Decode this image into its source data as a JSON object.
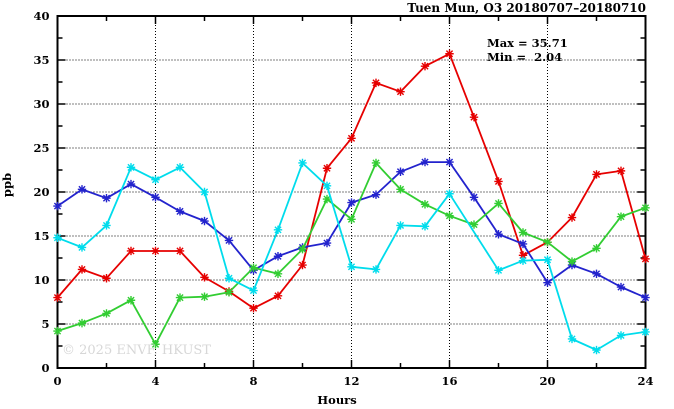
{
  "title": "Tuen Mun, O3 20180707–20180710",
  "legend": {
    "max_label": "Max = 35.71",
    "min_label": "Min =  2.04"
  },
  "watermark": "© 2025 ENVF, HKUST",
  "axes": {
    "y_label": "ppb",
    "x_label": "Hours"
  },
  "chart_data": {
    "type": "line",
    "title": "Tuen Mun, O3 20180707–20180710",
    "xlabel": "Hours",
    "ylabel": "ppb",
    "xlim": [
      0,
      24
    ],
    "ylim": [
      0,
      40
    ],
    "x_ticks": [
      0,
      4,
      8,
      12,
      16,
      20,
      24
    ],
    "x_minor_step": 2,
    "y_ticks": [
      0,
      5,
      10,
      15,
      20,
      25,
      30,
      35,
      40
    ],
    "y_minor_step": 2.5,
    "grid": "dotted",
    "legend_position": "top-right-inside",
    "max_value": 35.71,
    "min_value": 2.04,
    "marker": "asterisk",
    "x": [
      0,
      1,
      2,
      3,
      4,
      5,
      6,
      7,
      8,
      9,
      10,
      11,
      12,
      13,
      14,
      15,
      16,
      17,
      18,
      19,
      20,
      21,
      22,
      23,
      24
    ],
    "series": [
      {
        "name": "red-day-series",
        "color": "#e60000",
        "values": [
          8.0,
          11.2,
          10.2,
          13.3,
          13.3,
          13.3,
          10.3,
          8.7,
          6.8,
          8.2,
          11.7,
          22.7,
          26.1,
          32.4,
          31.4,
          34.3,
          35.71,
          28.5,
          21.2,
          12.8,
          14.3,
          17.1,
          22.0,
          22.4,
          12.4
        ]
      },
      {
        "name": "blue-day-series",
        "color": "#2323cd",
        "values": [
          18.4,
          20.3,
          19.3,
          20.9,
          19.4,
          17.8,
          16.7,
          14.5,
          11.1,
          12.7,
          13.7,
          14.2,
          18.8,
          19.7,
          22.3,
          23.4,
          23.4,
          19.4,
          15.2,
          14.1,
          9.7,
          11.7,
          10.7,
          9.2,
          8.0
        ]
      },
      {
        "name": "green-day-series",
        "color": "#32cd32",
        "values": [
          4.2,
          5.1,
          6.2,
          7.7,
          2.7,
          8.0,
          8.1,
          8.6,
          11.4,
          10.7,
          13.5,
          19.2,
          16.9,
          23.3,
          20.3,
          18.6,
          17.3,
          16.3,
          18.7,
          15.4,
          14.3,
          12.1,
          13.6,
          17.2,
          18.2
        ]
      },
      {
        "name": "cyan-day-series",
        "color": "#00dcec",
        "values": [
          14.8,
          13.7,
          16.2,
          22.8,
          21.4,
          22.8,
          20.0,
          10.2,
          8.8,
          15.7,
          23.3,
          20.7,
          11.5,
          11.2,
          16.2,
          16.1,
          19.8,
          null,
          11.1,
          12.2,
          12.3,
          3.3,
          2.04,
          3.7,
          4.1
        ]
      }
    ]
  }
}
